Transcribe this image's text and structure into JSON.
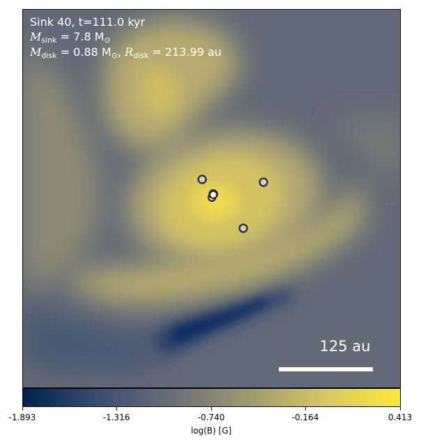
{
  "annotation": {
    "line1": "Sink 40, t=111.0 kyr",
    "msink_symbol": "M",
    "msink_sub": "sink",
    "msink_value": " = 7.8 M",
    "msink_unit_sub": "⊙",
    "mdisk_symbol": "M",
    "mdisk_sub": "disk",
    "mdisk_value": " = 0.88 M",
    "mdisk_unit_sub": "⊙",
    "rdisk_sep": ", ",
    "rdisk_symbol": "R",
    "rdisk_sub": "disk",
    "rdisk_value": " = 213.99 au"
  },
  "scale_bar": {
    "label": "125 au"
  },
  "colorbar": {
    "label": "log(B) [G]",
    "ticks": [
      "-1.893",
      "-1.316",
      "-0.740",
      "-0.164",
      "0.413"
    ],
    "colors": [
      "#00224e",
      "#3a4e72",
      "#6b7077",
      "#9f9a6f",
      "#d5c861",
      "#fee838"
    ]
  },
  "sinks": [
    "sink",
    "sink",
    "sink",
    "sink",
    "sink",
    "sink"
  ]
}
